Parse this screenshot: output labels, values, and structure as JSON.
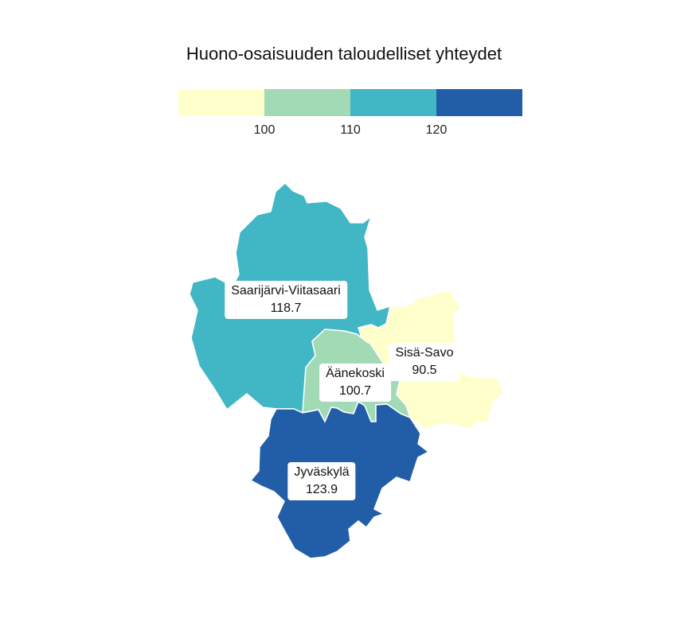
{
  "title": "Huono-osaisuuden taloudelliset yhteydet",
  "legend": {
    "colors": [
      "#ffffcc",
      "#a1dab4",
      "#41b6c4",
      "#225ea8"
    ],
    "ticks": [
      "100",
      "110",
      "120"
    ]
  },
  "regions": [
    {
      "name": "Saarijärvi-Viitasaari",
      "value": "118.7",
      "color": "#41b6c4"
    },
    {
      "name": "Sisä-Savo",
      "value": "90.5",
      "color": "#ffffcc"
    },
    {
      "name": "Äänekoski",
      "value": "100.7",
      "color": "#a1dab4"
    },
    {
      "name": "Jyväskylä",
      "value": "123.9",
      "color": "#225ea8"
    }
  ]
}
